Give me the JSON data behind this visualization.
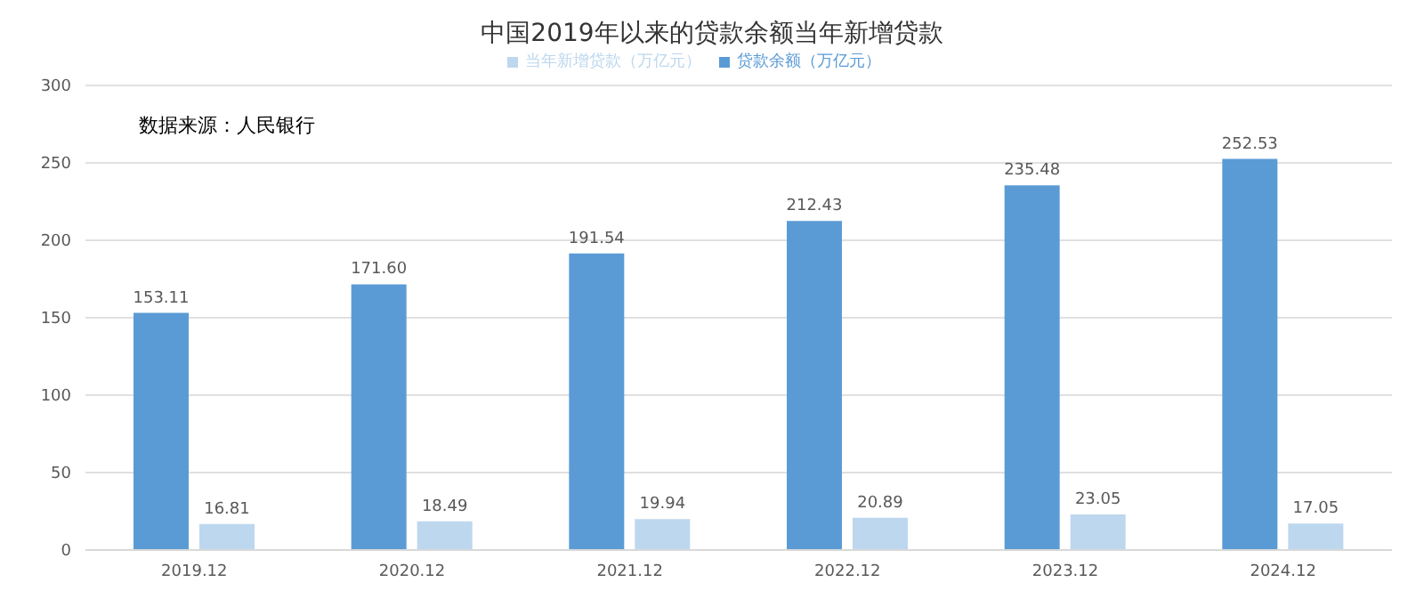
{
  "chart_data": {
    "type": "bar",
    "title": "中国2019年以来的贷款余额当年新增贷款",
    "categories": [
      "2019.12",
      "2020.12",
      "2021.12",
      "2022.12",
      "2023.12",
      "2024.12"
    ],
    "series": [
      {
        "name": "贷款余额（万亿元）",
        "color": "#5b9bd5",
        "values": [
          153.11,
          171.6,
          191.54,
          212.43,
          235.48,
          252.53
        ],
        "value_labels": [
          "153.11",
          "171.60",
          "191.54",
          "212.43",
          "235.48",
          "252.53"
        ]
      },
      {
        "name": "当年新增贷款（万亿元）",
        "color": "#bdd7ee",
        "values": [
          16.81,
          18.49,
          19.94,
          20.89,
          23.05,
          17.05
        ],
        "value_labels": [
          "16.81",
          "18.49",
          "19.94",
          "20.89",
          "23.05",
          "17.05"
        ]
      }
    ],
    "ylim": [
      0,
      300
    ],
    "yticks": [
      0,
      50,
      100,
      150,
      200,
      250,
      300
    ],
    "grid": "y",
    "legend": "top",
    "annotations": [
      "数据来源：人民银行"
    ]
  }
}
